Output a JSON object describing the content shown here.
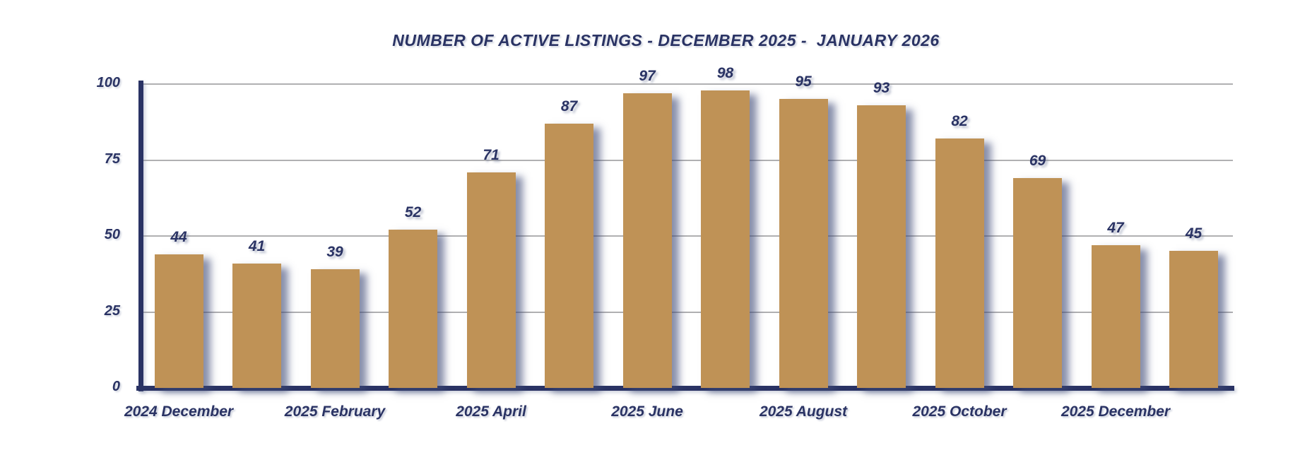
{
  "chart_data": {
    "type": "bar",
    "title": "NUMBER OF ACTIVE LISTINGS - DECEMBER 2025 -  JANUARY 2026",
    "values": [
      44,
      41,
      39,
      52,
      71,
      87,
      97,
      98,
      95,
      93,
      82,
      69,
      47,
      45
    ],
    "x_tick_labels": [
      "2024 December",
      "2025 February",
      "2025 April",
      "2025 June",
      "2025 August",
      "2025 October",
      "2025 December"
    ],
    "x_label_slot_step": 2,
    "y_ticks": [
      0,
      25,
      50,
      75,
      100
    ],
    "ylim": [
      0,
      100
    ],
    "grid": true,
    "legend": "none",
    "xlabel": "",
    "ylabel": "",
    "colors": {
      "bar": "#bf9256",
      "axis": "#2a3364",
      "text": "#2a3364",
      "gridline": "#b0b0b2",
      "shadow": "rgba(62,72,118,0.62)"
    }
  }
}
